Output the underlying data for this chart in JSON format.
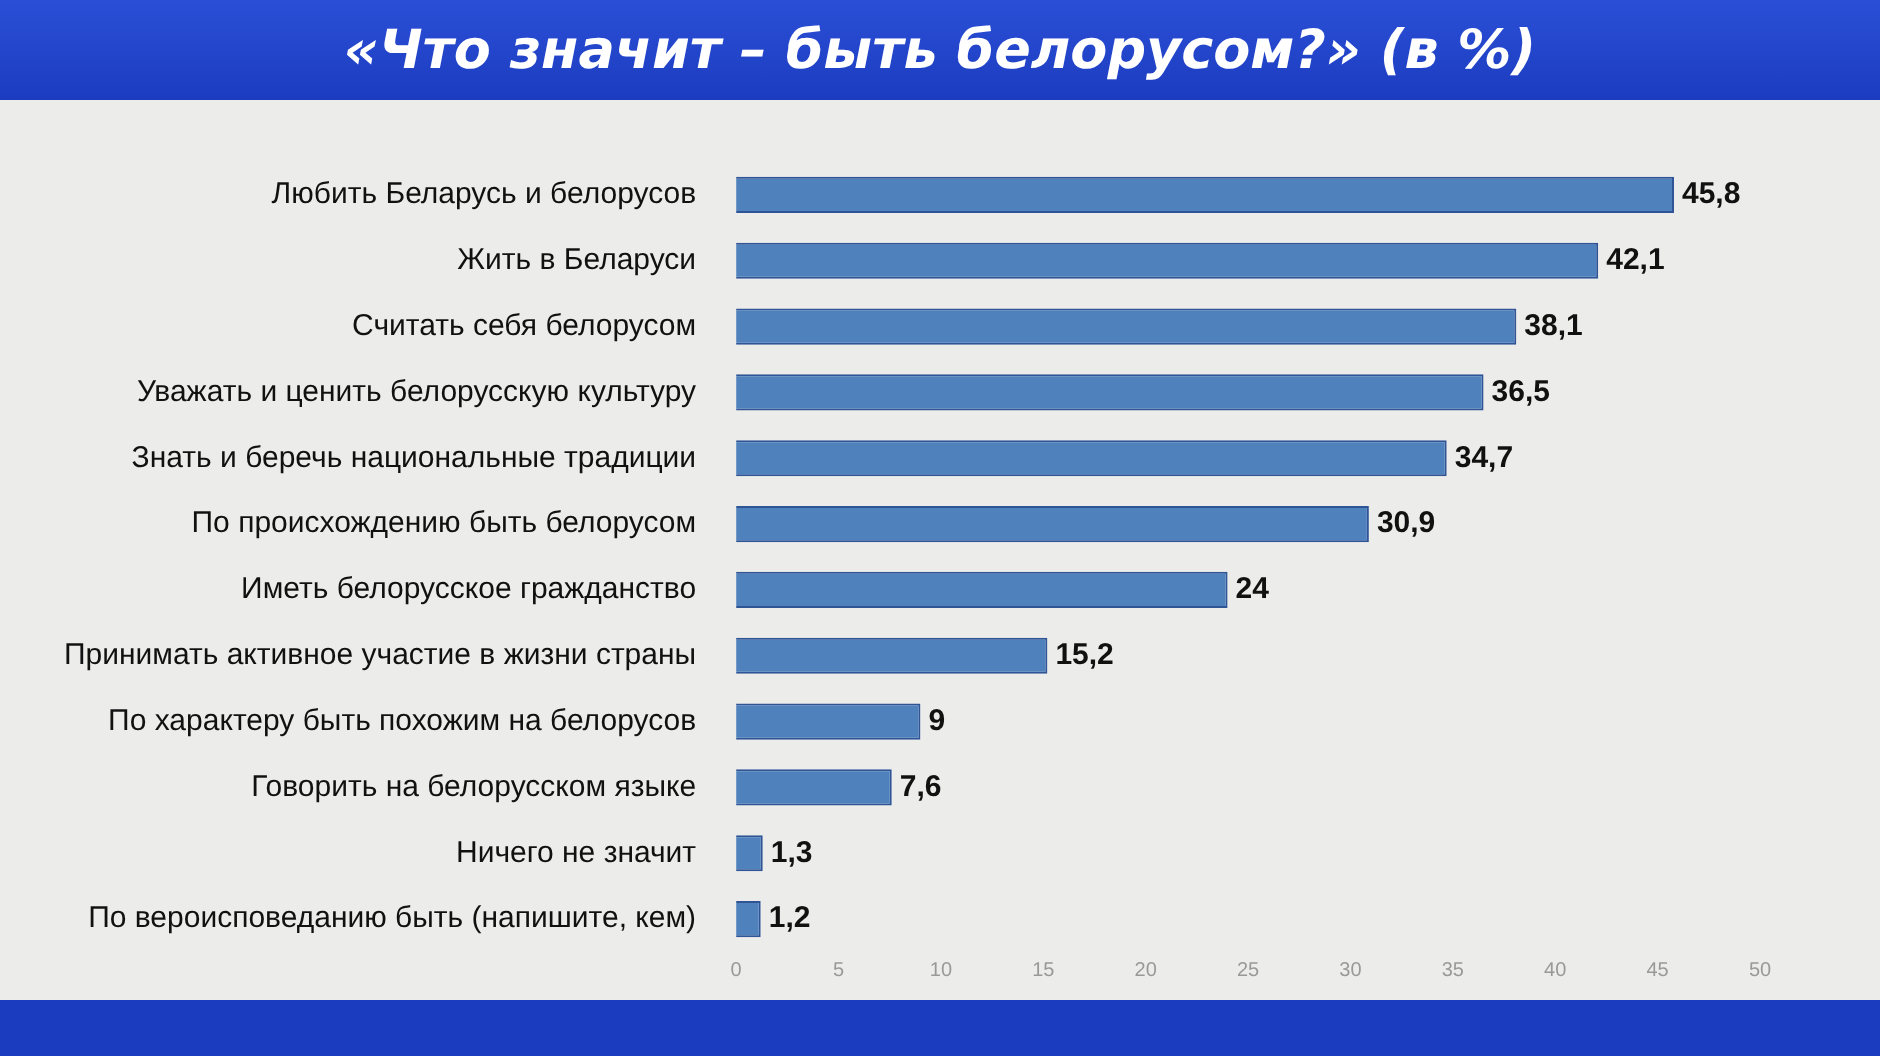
{
  "chart_data": {
    "type": "bar",
    "orientation": "horizontal",
    "title": "«Что значит – быть белорусом?» (в %)",
    "categories": [
      "Любить Беларусь и белорусов",
      "Жить в Беларуси",
      "Считать себя белорусом",
      "Уважать и ценить белорусскую культуру",
      "Знать и беречь национальные традиции",
      "По происхождению быть белорусом",
      "Иметь белорусское гражданство",
      "Принимать активное участие в жизни страны",
      "По характеру быть похожим на белорусов",
      "Говорить на белорусском языке",
      "Ничего не значит",
      "По вероисповеданию быть (напишите, кем)"
    ],
    "values": [
      45.8,
      42.1,
      38.1,
      36.5,
      34.7,
      30.9,
      24,
      15.2,
      9,
      7.6,
      1.3,
      1.2
    ],
    "color": "#4f81bd",
    "xlim": [
      0,
      50
    ],
    "xticks": [
      0,
      5,
      10,
      15,
      20,
      25,
      30,
      35,
      40,
      45,
      50
    ],
    "grid": false,
    "value_labels": [
      "45,8",
      "42,1",
      "38,1",
      "36,5",
      "34,7",
      "30,9",
      "24",
      "15,2",
      "9",
      "7,6",
      "1,3",
      "1,2"
    ]
  }
}
